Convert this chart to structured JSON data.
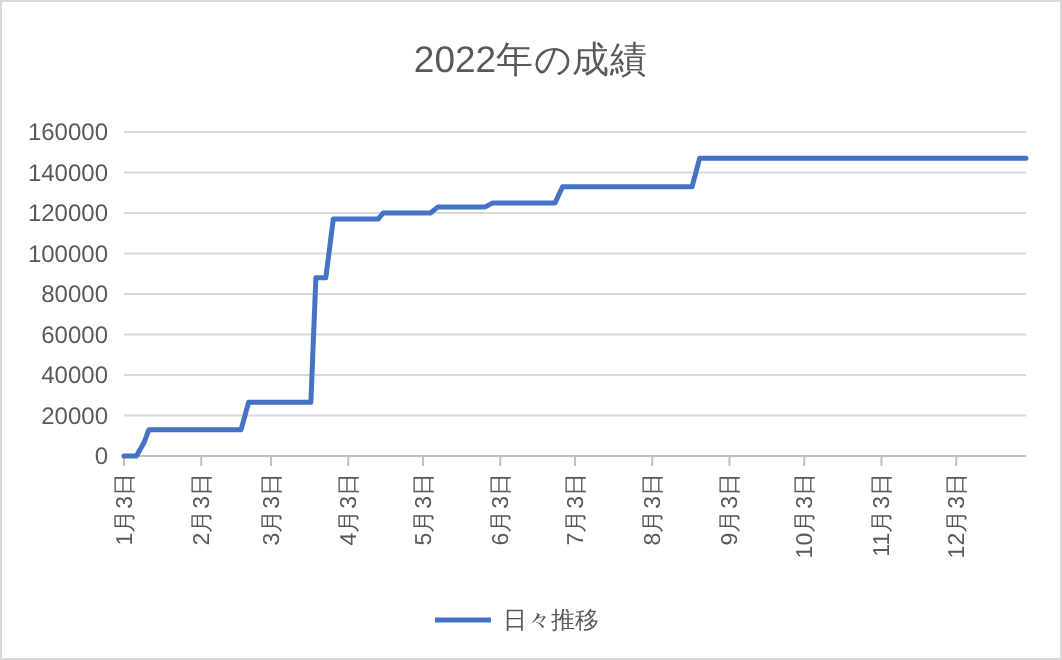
{
  "chart_data": {
    "type": "line",
    "title": "2022年の成績",
    "x": [
      "2022-01-03",
      "2022-01-08",
      "2022-01-11",
      "2022-01-13",
      "2022-02-19",
      "2022-02-22",
      "2022-03-19",
      "2022-03-21",
      "2022-03-25",
      "2022-03-28",
      "2022-04-15",
      "2022-04-17",
      "2022-05-06",
      "2022-05-09",
      "2022-05-28",
      "2022-05-31",
      "2022-06-25",
      "2022-06-28",
      "2022-08-19",
      "2022-08-22",
      "2022-12-31"
    ],
    "series": [
      {
        "name": "日々推移",
        "color": "#4472c4",
        "values": [
          0,
          0,
          6500,
          13000,
          13000,
          26500,
          26500,
          88000,
          88000,
          117000,
          117000,
          120000,
          120000,
          123000,
          123000,
          125000,
          125000,
          133000,
          133000,
          147000,
          147000
        ]
      }
    ],
    "xlim": [
      "2022-01-03",
      "2022-12-31"
    ],
    "xticks": [
      {
        "value": "2022-01-03",
        "label": "1月3日"
      },
      {
        "value": "2022-02-03",
        "label": "2月3日"
      },
      {
        "value": "2022-03-03",
        "label": "3月3日"
      },
      {
        "value": "2022-04-03",
        "label": "4月3日"
      },
      {
        "value": "2022-05-03",
        "label": "5月3日"
      },
      {
        "value": "2022-06-03",
        "label": "6月3日"
      },
      {
        "value": "2022-07-03",
        "label": "7月3日"
      },
      {
        "value": "2022-08-03",
        "label": "8月3日"
      },
      {
        "value": "2022-09-03",
        "label": "9月3日"
      },
      {
        "value": "2022-10-03",
        "label": "10月3日"
      },
      {
        "value": "2022-11-03",
        "label": "11月3日"
      },
      {
        "value": "2022-12-03",
        "label": "12月3日"
      }
    ],
    "ylim": [
      0,
      160000
    ],
    "yticks": [
      0,
      20000,
      40000,
      60000,
      80000,
      100000,
      120000,
      140000,
      160000
    ],
    "grid": "y",
    "legend": "bottom",
    "marker": "none",
    "line_style": "solid"
  }
}
